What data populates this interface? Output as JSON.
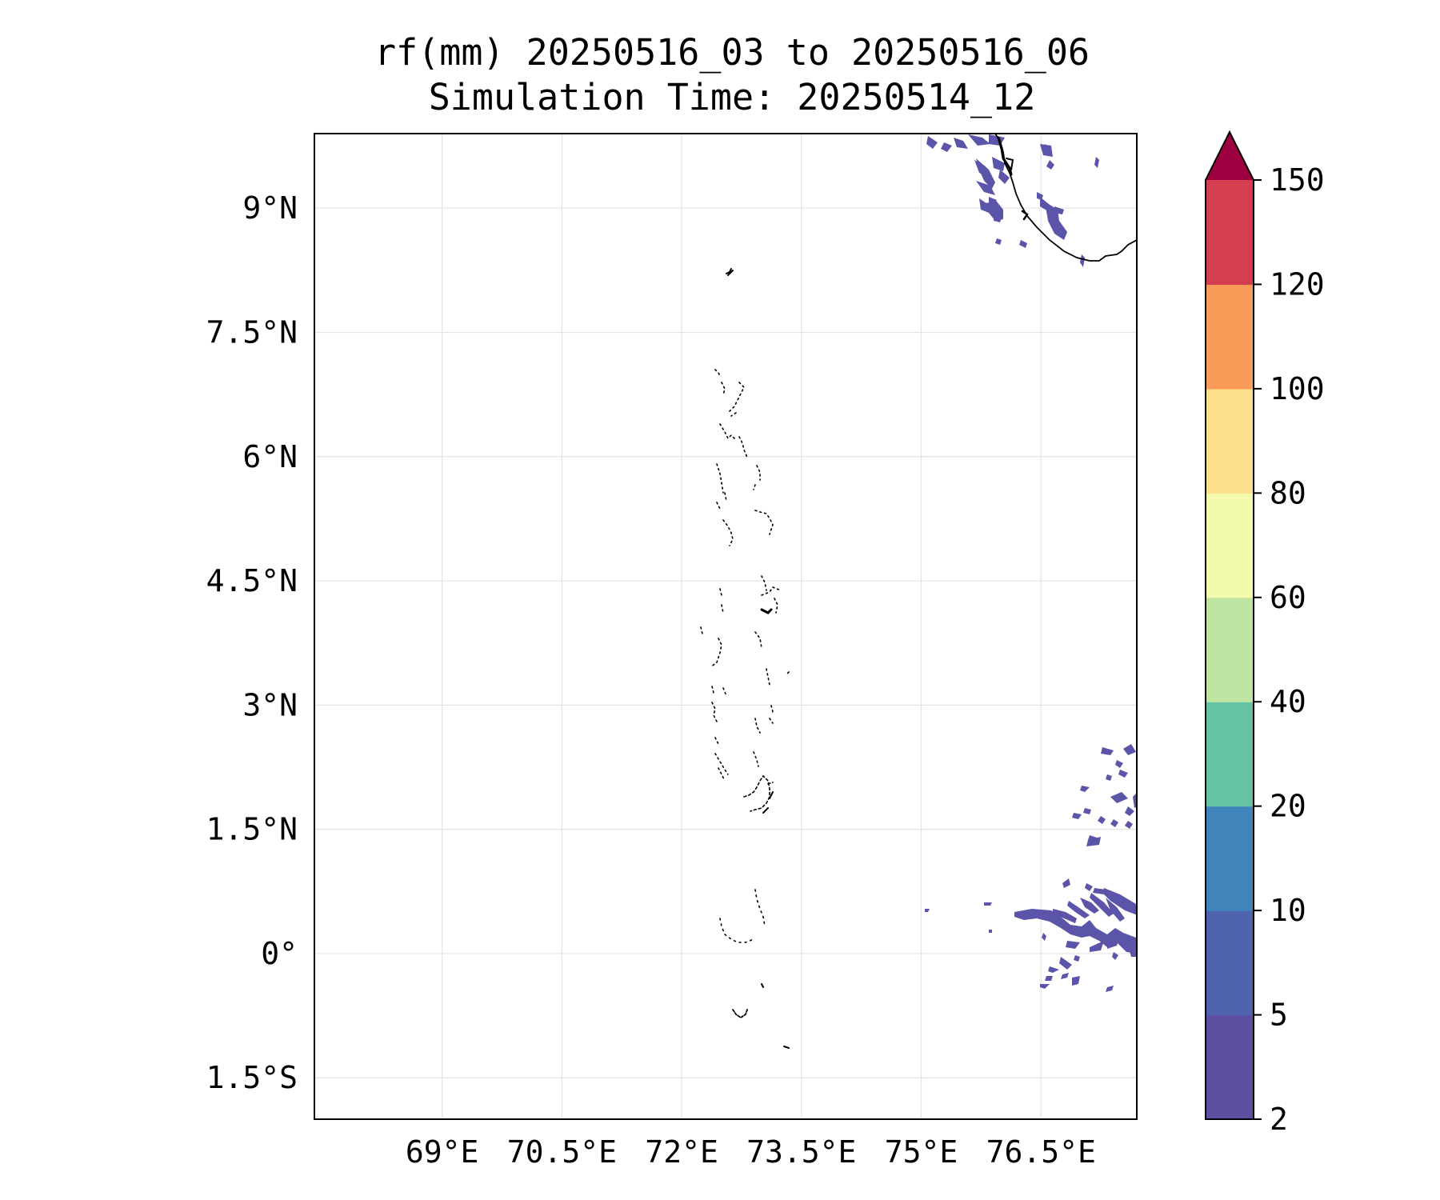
{
  "map": {
    "title_line1": "rf(mm) 20250516_03 to 20250516_06",
    "title_line2": "Simulation Time: 20250514_12",
    "lon_range": [
      67.4,
      77.7
    ],
    "lat_range": [
      -2.0,
      9.9
    ],
    "lon_ticks": [
      69,
      70.5,
      72,
      73.5,
      75,
      76.5
    ],
    "lon_tick_labels": [
      "69°E",
      "70.5°E",
      "72°E",
      "73.5°E",
      "75°E",
      "76.5°E"
    ],
    "lat_ticks": [
      -1.5,
      0,
      1.5,
      3,
      4.5,
      6,
      7.5,
      9
    ],
    "lat_tick_labels": [
      "1.5°S",
      "0°",
      "1.5°N",
      "3°N",
      "4.5°N",
      "6°N",
      "7.5°N",
      "9°N"
    ],
    "gridlines": true
  },
  "colorbar": {
    "levels": [
      2,
      5,
      10,
      20,
      40,
      60,
      80,
      100,
      120,
      150
    ],
    "level_labels": [
      "2",
      "5",
      "10",
      "20",
      "40",
      "60",
      "80",
      "100",
      "120",
      "150"
    ],
    "colors": [
      "#5e4fa2",
      "#4f64ad",
      "#3f85bc",
      "#66c2a5",
      "#bde4a0",
      "#f4faad",
      "#fde08b",
      "#f99c5a",
      "#d53e4f"
    ],
    "extend_color": "#9e0142",
    "extend": "max"
  },
  "rain_color": "#5a55a8",
  "coast_color": "#000000"
}
